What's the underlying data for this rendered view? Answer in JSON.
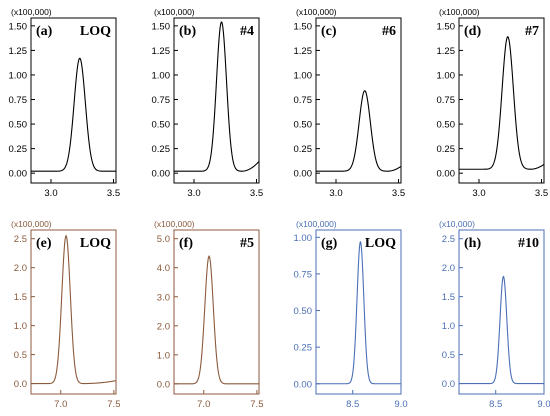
{
  "chart_data": [
    {
      "label": "(a)",
      "title": "LOQ",
      "type": "line",
      "color": "#000000",
      "multiplier": "(x100,000)",
      "yticks": [
        "0.00",
        "0.25",
        "0.50",
        "0.75",
        "1.00",
        "1.25",
        "1.50"
      ],
      "ylim": [
        -0.1,
        1.58
      ],
      "xticks": [
        "3.0",
        "3.5"
      ],
      "xlim": [
        2.84,
        3.52
      ],
      "peak": {
        "center": 3.23,
        "height": 1.15,
        "width": 0.045
      },
      "baseline": 0.02,
      "tail": 0.0
    },
    {
      "label": "(b)",
      "title": "#4",
      "type": "line",
      "color": "#000000",
      "multiplier": "(x100,000)",
      "yticks": [
        "0.00",
        "0.25",
        "0.50",
        "0.75",
        "1.00",
        "1.25",
        "1.50"
      ],
      "ylim": [
        -0.1,
        1.58
      ],
      "xticks": [
        "3.0",
        "3.5"
      ],
      "xlim": [
        2.84,
        3.52
      ],
      "peak": {
        "center": 3.22,
        "height": 1.52,
        "width": 0.04
      },
      "baseline": 0.02,
      "tail": 0.1
    },
    {
      "label": "(c)",
      "title": "#6",
      "type": "line",
      "color": "#000000",
      "multiplier": "(x100,000)",
      "yticks": [
        "0.00",
        "0.25",
        "0.50",
        "0.75",
        "1.00",
        "1.25",
        "1.50"
      ],
      "ylim": [
        -0.1,
        1.58
      ],
      "xticks": [
        "3.0",
        "3.5"
      ],
      "xlim": [
        2.84,
        3.52
      ],
      "peak": {
        "center": 3.23,
        "height": 0.82,
        "width": 0.045
      },
      "baseline": 0.02,
      "tail": 0.05
    },
    {
      "label": "(d)",
      "title": "#7",
      "type": "line",
      "color": "#000000",
      "multiplier": "(x100,000)",
      "yticks": [
        "0.00",
        "0.25",
        "0.50",
        "0.75",
        "1.00",
        "1.25",
        "1.50"
      ],
      "ylim": [
        -0.1,
        1.58
      ],
      "xticks": [
        "3.0",
        "3.5"
      ],
      "xlim": [
        2.84,
        3.52
      ],
      "peak": {
        "center": 3.23,
        "height": 1.35,
        "width": 0.045
      },
      "baseline": 0.04,
      "tail": 0.05
    },
    {
      "label": "(e)",
      "title": "LOQ",
      "type": "line",
      "color": "#8b5a3c",
      "multiplier": "(x100,000)",
      "yticks": [
        "0.0",
        "0.5",
        "1.0",
        "1.5",
        "2.0",
        "2.5"
      ],
      "ylim": [
        -0.18,
        2.65
      ],
      "xticks": [
        "7.0",
        "7.5"
      ],
      "xlim": [
        6.72,
        7.52
      ],
      "peak": {
        "center": 7.05,
        "height": 2.55,
        "width": 0.04
      },
      "baseline": 0.0,
      "tail": 0.05
    },
    {
      "label": "(f)",
      "title": "#5",
      "type": "line",
      "color": "#8b5a3c",
      "multiplier": "(x100,000)",
      "yticks": [
        "0.0",
        "1.0",
        "2.0",
        "3.0",
        "4.0",
        "5.0"
      ],
      "ylim": [
        -0.35,
        5.3
      ],
      "xticks": [
        "7.0",
        "7.5"
      ],
      "xlim": [
        6.72,
        7.52
      ],
      "peak": {
        "center": 7.05,
        "height": 4.4,
        "width": 0.04
      },
      "baseline": 0.0,
      "tail": 0.0
    },
    {
      "label": "(g)",
      "title": "LOQ",
      "type": "line",
      "color": "#4a6fb5",
      "multiplier": "(x100,000)",
      "yticks": [
        "0.00",
        "0.25",
        "0.50",
        "0.75",
        "1.00"
      ],
      "ylim": [
        -0.07,
        1.05
      ],
      "xticks": [
        "8.5",
        "9.0"
      ],
      "xlim": [
        8.12,
        9.0
      ],
      "peak": {
        "center": 8.58,
        "height": 0.97,
        "width": 0.035
      },
      "baseline": 0.0,
      "tail": 0.0
    },
    {
      "label": "(h)",
      "title": "#10",
      "type": "line",
      "color": "#4a6fb5",
      "multiplier": "(x10,000)",
      "yticks": [
        "0.0",
        "0.5",
        "1.0",
        "1.5",
        "2.0",
        "2.5"
      ],
      "ylim": [
        -0.18,
        2.65
      ],
      "xticks": [
        "8.5",
        "9.0"
      ],
      "xlim": [
        8.12,
        9.0
      ],
      "peak": {
        "center": 8.58,
        "height": 1.85,
        "width": 0.035
      },
      "baseline": 0.0,
      "tail": 0.0
    }
  ]
}
